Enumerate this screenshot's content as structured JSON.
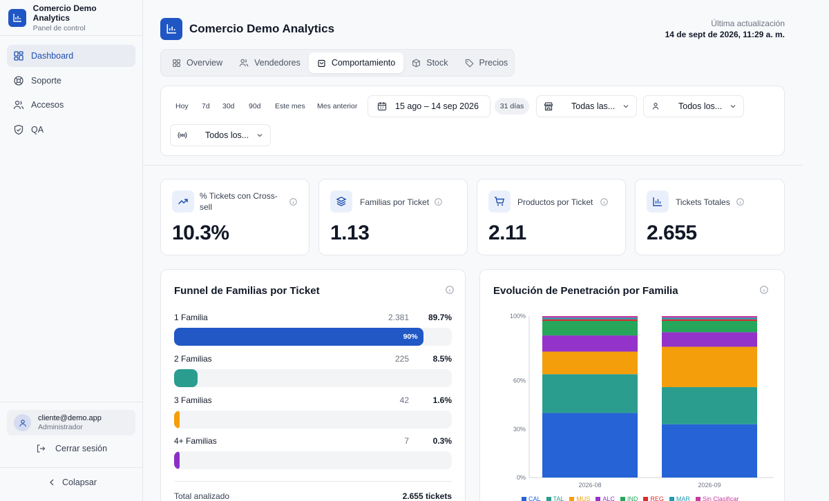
{
  "sidebar": {
    "brand_name": "Comercio Demo Analytics",
    "brand_sub": "Panel de control",
    "items": [
      {
        "label": "Dashboard",
        "icon": "grid-icon",
        "active": true
      },
      {
        "label": "Soporte",
        "icon": "lifebuoy-icon"
      },
      {
        "label": "Accesos",
        "icon": "users-icon"
      },
      {
        "label": "QA",
        "icon": "shield-icon"
      }
    ],
    "user_email": "cliente@demo.app",
    "user_role": "Administrador",
    "logout_label": "Cerrar sesión",
    "collapse_label": "Colapsar"
  },
  "header": {
    "title": "Comercio Demo Analytics",
    "update_label": "Última actualización",
    "update_value": "14 de sept de 2026, 11:29 a. m."
  },
  "tabs": [
    {
      "label": "Overview",
      "icon": "grid-icon"
    },
    {
      "label": "Vendedores",
      "icon": "users-icon"
    },
    {
      "label": "Comportamiento",
      "icon": "cart-icon",
      "active": true
    },
    {
      "label": "Stock",
      "icon": "box-icon"
    },
    {
      "label": "Precios",
      "icon": "tag-icon"
    }
  ],
  "filters": {
    "quick": [
      "Hoy",
      "7d",
      "30d",
      "90d",
      "Este mes",
      "Mes anterior"
    ],
    "date_range": "15 ago – 14 sep 2026",
    "days_badge": "31 días",
    "store_select": "Todas las...",
    "seller_select": "Todos los...",
    "channel_select": "Todos los..."
  },
  "kpis": [
    {
      "title": "% Tickets con Cross-sell",
      "value": "10.3%",
      "icon": "trending-up-icon"
    },
    {
      "title": "Familias por Ticket",
      "value": "1.13",
      "icon": "layers-icon"
    },
    {
      "title": "Productos por Ticket",
      "value": "2.11",
      "icon": "cart-icon"
    },
    {
      "title": "Tickets Totales",
      "value": "2.655",
      "icon": "bar-chart-icon"
    }
  ],
  "funnel": {
    "title": "Funnel de Familias por Ticket",
    "rows": [
      {
        "label": "1 Familia",
        "count": "2.381",
        "pct": "89.7%",
        "fill": 0.897,
        "bar_label": "90%",
        "color": "#2158c6"
      },
      {
        "label": "2 Familias",
        "count": "225",
        "pct": "8.5%",
        "fill": 0.085,
        "bar_label": "",
        "color": "#2a9d8f"
      },
      {
        "label": "3 Familias",
        "count": "42",
        "pct": "1.6%",
        "fill": 0.016,
        "bar_label": "",
        "color": "#f59e0b"
      },
      {
        "label": "4+ Familias",
        "count": "7",
        "pct": "0.3%",
        "fill": 0.003,
        "bar_label": "",
        "color": "#8b2fc9"
      }
    ],
    "total_label": "Total analizado",
    "total_value": "2.655 tickets"
  },
  "penetration": {
    "title": "Evolución de Penetración por Familia"
  },
  "chart_data": {
    "type": "bar",
    "stacked": true,
    "categories": [
      "2026-08",
      "2026-09"
    ],
    "y_ticks": [
      "100%",
      "60%",
      "30%",
      "0%"
    ],
    "y_tick_values": [
      100,
      60,
      30,
      0
    ],
    "ylim": [
      0,
      100
    ],
    "series": [
      {
        "name": "CAL",
        "color": "#2563d6",
        "values": [
          40,
          33
        ]
      },
      {
        "name": "TAL",
        "color": "#2a9d8f",
        "values": [
          24,
          23
        ]
      },
      {
        "name": "MUS",
        "color": "#f59e0b",
        "values": [
          14,
          25
        ]
      },
      {
        "name": "ALC",
        "color": "#9333c9",
        "values": [
          10,
          9
        ]
      },
      {
        "name": "IND",
        "color": "#26a65b",
        "values": [
          9,
          7
        ]
      },
      {
        "name": "REG",
        "color": "#d62d2d",
        "values": [
          1,
          1
        ]
      },
      {
        "name": "MAR",
        "color": "#1e9bb0",
        "values": [
          1,
          1
        ]
      },
      {
        "name": "Sin Clasificar",
        "color": "#c73b9e",
        "values": [
          1,
          1
        ]
      }
    ]
  }
}
